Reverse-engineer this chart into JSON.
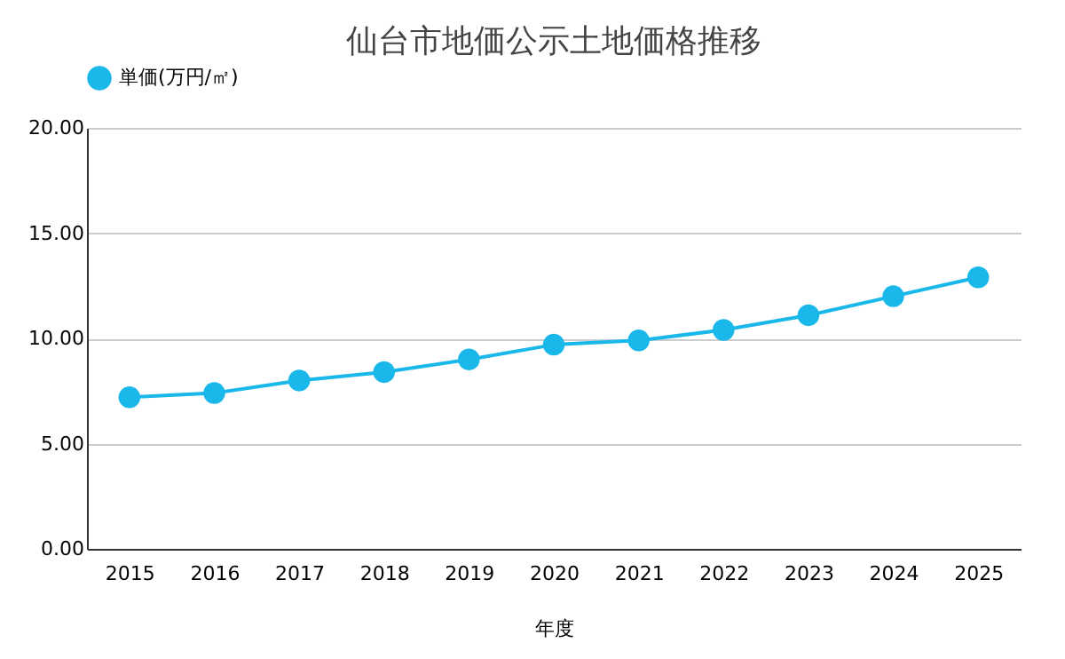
{
  "chart_data": {
    "type": "line",
    "title": "仙台市地価公示土地価格推移",
    "xlabel": "年度",
    "categories": [
      "2015",
      "2016",
      "2017",
      "2018",
      "2019",
      "2020",
      "2021",
      "2022",
      "2023",
      "2024",
      "2025"
    ],
    "series": [
      {
        "name": "単価(万円/㎡)",
        "color": "#1ab8ea",
        "values": [
          7.2,
          7.4,
          8.0,
          8.4,
          9.0,
          9.7,
          9.9,
          10.4,
          11.1,
          12.0,
          12.9
        ]
      }
    ],
    "ylim": [
      0,
      20
    ],
    "yticks": [
      {
        "value": 0,
        "label": "0.00"
      },
      {
        "value": 5,
        "label": "5.00"
      },
      {
        "value": 10,
        "label": "10.00"
      },
      {
        "value": 15,
        "label": "15.00"
      },
      {
        "value": 20,
        "label": "20.00"
      }
    ],
    "grid": "y",
    "legend": "top",
    "marker": "circle",
    "line_style": "solid"
  }
}
